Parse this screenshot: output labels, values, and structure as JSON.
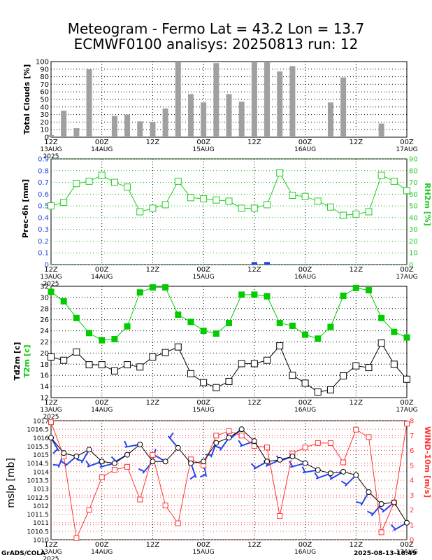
{
  "title": {
    "line1": "Meteogram - Fermo Lat = 43.2 Lon = 13.7",
    "line2": "ECMWF0100 analisys: 20250813 run: 12"
  },
  "footer": {
    "left": "GrADS/COLA",
    "right": "2025-08-13-18:49"
  },
  "x_axis": {
    "hours_total": 84,
    "ticks": [
      {
        "h": 0,
        "time": "12Z",
        "date": "13AUG",
        "year": "2025"
      },
      {
        "h": 12,
        "time": "00Z",
        "date": "14AUG",
        "year": ""
      },
      {
        "h": 24,
        "time": "12Z",
        "date": "",
        "year": ""
      },
      {
        "h": 36,
        "time": "00Z",
        "date": "15AUG",
        "year": ""
      },
      {
        "h": 48,
        "time": "12Z",
        "date": "",
        "year": ""
      },
      {
        "h": 60,
        "time": "00Z",
        "date": "16AUG",
        "year": ""
      },
      {
        "h": 72,
        "time": "12Z",
        "date": "",
        "year": ""
      },
      {
        "h": 84,
        "time": "00Z",
        "date": "17AUG",
        "year": ""
      }
    ]
  },
  "colors": {
    "clouds": "#a0a0a0",
    "rh": "#22cc22",
    "prec": "#2244dd",
    "t2m": "#00cc00",
    "td2m": "#000000",
    "mslp": "#000000",
    "wind": "#ff3333",
    "barb": "#2244ee",
    "grid": "#000000",
    "grid_red": "#ff4444",
    "grid_green": "#00bb00"
  },
  "chart_data": [
    {
      "type": "bar",
      "ylabel": "Total Clouds [%]",
      "ylim": [
        0,
        100
      ],
      "yticks": [
        0,
        10,
        20,
        30,
        40,
        50,
        60,
        70,
        80,
        90,
        100
      ],
      "x_hours": [
        0,
        3,
        6,
        9,
        12,
        15,
        18,
        21,
        24,
        27,
        30,
        33,
        36,
        39,
        42,
        45,
        48,
        51,
        54,
        57,
        60,
        63,
        66,
        69,
        72,
        75,
        78,
        81,
        84
      ],
      "values": [
        3,
        35,
        12,
        90,
        0,
        28,
        30,
        21,
        20,
        38,
        100,
        57,
        46,
        98,
        57,
        47,
        100,
        100,
        87,
        94,
        0,
        0,
        46,
        79,
        0,
        0,
        18,
        0,
        0
      ]
    },
    {
      "type": "line",
      "ylabel": "Prec-6h [mm]",
      "ylabel_right": "RH2m [%]",
      "ylim": [
        0,
        0.9
      ],
      "yticks": [
        0,
        0.1,
        0.2,
        0.3,
        0.4,
        0.5,
        0.6,
        0.7,
        0.8,
        0.9
      ],
      "ylim_right": [
        0,
        90
      ],
      "yticks_right": [
        0,
        10,
        20,
        30,
        40,
        50,
        60,
        70,
        80,
        90
      ],
      "x_hours": [
        0,
        3,
        6,
        9,
        12,
        15,
        18,
        21,
        24,
        27,
        30,
        33,
        36,
        39,
        42,
        45,
        48,
        51,
        54,
        57,
        60,
        63,
        66,
        69,
        72,
        75,
        78,
        81,
        84
      ],
      "series": [
        {
          "name": "RH2m [%]",
          "axis": "right",
          "values": [
            50,
            53,
            69,
            71,
            76,
            70,
            66,
            45,
            48,
            51,
            71,
            57,
            56,
            55,
            54,
            48,
            48,
            51,
            78,
            59,
            58,
            54,
            49,
            42,
            43,
            45,
            76,
            71,
            63
          ]
        },
        {
          "name": "Prec-6h [mm]",
          "axis": "left",
          "values": [
            0,
            0,
            0,
            0,
            0,
            0,
            0,
            0,
            0,
            0,
            0,
            0,
            0,
            0,
            0,
            0,
            0.01,
            0.01,
            0,
            0,
            0,
            0,
            0,
            0,
            0,
            0,
            0,
            0,
            0
          ]
        }
      ]
    },
    {
      "type": "line",
      "ylabel": "Td2m [c]",
      "ylabel2": "T2m [c]",
      "ylim": [
        12,
        32
      ],
      "yticks": [
        12,
        14,
        16,
        18,
        20,
        22,
        24,
        26,
        28,
        30,
        32
      ],
      "x_hours": [
        0,
        3,
        6,
        9,
        12,
        15,
        18,
        21,
        24,
        27,
        30,
        33,
        36,
        39,
        42,
        45,
        48,
        51,
        54,
        57,
        60,
        63,
        66,
        69,
        72,
        75,
        78,
        81,
        84
      ],
      "series": [
        {
          "name": "T2m [c]",
          "values": [
            31,
            29.3,
            26.3,
            23.6,
            22.3,
            22.5,
            24.8,
            30.9,
            31.8,
            31.8,
            26.9,
            25.6,
            24,
            23.5,
            25.4,
            30.5,
            30.5,
            30.2,
            25.4,
            24.9,
            23.3,
            22.6,
            24.7,
            30.3,
            31.7,
            31.3,
            26.3,
            23.8,
            22.8
          ]
        },
        {
          "name": "Td2m [c]",
          "values": [
            19.3,
            18.7,
            20.2,
            17.9,
            17.9,
            16.8,
            17.9,
            17.5,
            19.3,
            20.1,
            21.1,
            16.3,
            14.7,
            13.8,
            14.9,
            18.1,
            18.1,
            18.7,
            21.3,
            16.0,
            14.6,
            13.0,
            13.4,
            15.9,
            17.7,
            17.4,
            21.8,
            18.0,
            15.3
          ]
        }
      ]
    },
    {
      "type": "line",
      "ylabel": "mslp [mb]",
      "ylabel_right": "WIND-10m [m/s]",
      "ylim": [
        1010,
        1017
      ],
      "yticks": [
        1010,
        1010.5,
        1011,
        1011.5,
        1012,
        1012.5,
        1013,
        1013.5,
        1014,
        1014.5,
        1015,
        1015.5,
        1016,
        1016.5,
        1017
      ],
      "ylim_right": [
        0,
        8
      ],
      "yticks_right": [
        0,
        1,
        2,
        3,
        4,
        5,
        6,
        7,
        8
      ],
      "x_hours": [
        0,
        3,
        6,
        9,
        12,
        15,
        18,
        21,
        24,
        27,
        30,
        33,
        36,
        39,
        42,
        45,
        48,
        51,
        54,
        57,
        60,
        63,
        66,
        69,
        72,
        75,
        78,
        81,
        84
      ],
      "series": [
        {
          "name": "mslp [mb]",
          "axis": "left",
          "values": [
            1016.0,
            1015.1,
            1014.9,
            1015.3,
            1014.6,
            1014.5,
            1015.0,
            1015.6,
            1014.6,
            1014.6,
            1015.4,
            1014.5,
            1014.6,
            1015.7,
            1016.0,
            1016.5,
            1015.8,
            1014.6,
            1014.7,
            1014.9,
            1014.5,
            1014.1,
            1013.9,
            1014.0,
            1013.8,
            1012.8,
            1012.1,
            1012.2,
            1011.0
          ]
        },
        {
          "name": "WIND-10m [m/s]",
          "axis": "right",
          "values": [
            7.9,
            5.6,
            0.1,
            2.0,
            4.2,
            4.7,
            4.9,
            2.7,
            5.7,
            2.3,
            1.1,
            5.4,
            5.0,
            7.0,
            7.3,
            7.0,
            6.3,
            6.2,
            1.6,
            5.8,
            6.2,
            6.5,
            6.5,
            5.2,
            7.4,
            6.9,
            0.5,
            2.5,
            7.8
          ]
        }
      ],
      "wind_barbs": "present"
    }
  ]
}
